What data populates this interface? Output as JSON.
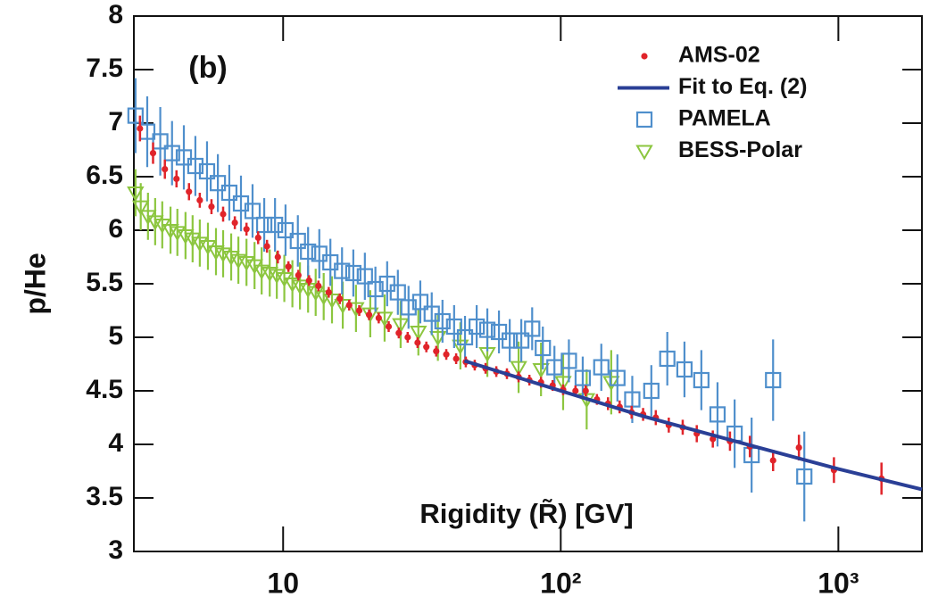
{
  "chart_data": {
    "type": "scatter",
    "annotation": "(b)",
    "xlabel": "Rigidity (R̃) [GV]",
    "ylabel": "p/He",
    "xscale": "log",
    "xlim": [
      2.9,
      2000
    ],
    "ylim": [
      3,
      8
    ],
    "xticks": [
      10,
      {
        "value": 100,
        "label": "10²"
      },
      {
        "value": 1000,
        "label": "10³"
      }
    ],
    "yticks": [
      3,
      3.5,
      4,
      4.5,
      5,
      5.5,
      6,
      6.5,
      7,
      7.5,
      8
    ],
    "legend": "top-right",
    "series": [
      {
        "name": "AMS-02",
        "color": "#e0242a",
        "marker": "circle",
        "x": [
          3.05,
          3.4,
          3.75,
          4.13,
          4.58,
          5.01,
          5.52,
          6.08,
          6.7,
          7.38,
          8.13,
          8.75,
          9.57,
          10.45,
          11.35,
          12.4,
          13.4,
          14.6,
          16,
          17.3,
          18.8,
          20.4,
          22.1,
          24,
          26.1,
          28.1,
          30.5,
          32.8,
          35.6,
          38.7,
          42,
          45.5,
          49,
          53.6,
          58.6,
          64,
          70.5,
          77.1,
          84.9,
          93.5,
          102,
          113,
          123,
          135,
          148,
          163,
          180,
          198,
          220,
          245,
          275,
          309,
          353,
          407,
          480,
          582,
          721,
          964,
          1430
        ],
        "values": [
          6.95,
          6.72,
          6.57,
          6.48,
          6.36,
          6.28,
          6.22,
          6.15,
          6.07,
          6.01,
          5.93,
          5.85,
          5.75,
          5.66,
          5.58,
          5.53,
          5.48,
          5.42,
          5.36,
          5.3,
          5.25,
          5.21,
          5.18,
          5.1,
          5.04,
          5,
          4.95,
          4.91,
          4.87,
          4.84,
          4.8,
          4.77,
          4.74,
          4.71,
          4.68,
          4.66,
          4.63,
          4.6,
          4.58,
          4.55,
          4.51,
          4.5,
          4.5,
          4.42,
          4.38,
          4.35,
          4.3,
          4.28,
          4.25,
          4.18,
          4.16,
          4.1,
          4.05,
          4.03,
          3.98,
          3.85,
          3.97,
          3.76,
          3.68
        ],
        "errors": [
          0.12,
          0.1,
          0.09,
          0.08,
          0.08,
          0.07,
          0.07,
          0.07,
          0.06,
          0.06,
          0.06,
          0.06,
          0.06,
          0.05,
          0.05,
          0.05,
          0.05,
          0.05,
          0.05,
          0.05,
          0.05,
          0.05,
          0.05,
          0.05,
          0.05,
          0.05,
          0.05,
          0.05,
          0.05,
          0.05,
          0.05,
          0.05,
          0.05,
          0.05,
          0.05,
          0.05,
          0.05,
          0.05,
          0.05,
          0.05,
          0.05,
          0.05,
          0.05,
          0.05,
          0.06,
          0.06,
          0.06,
          0.06,
          0.07,
          0.07,
          0.07,
          0.08,
          0.08,
          0.09,
          0.1,
          0.1,
          0.12,
          0.12,
          0.15
        ]
      },
      {
        "name": "Fit to Eq. (2)",
        "color": "#2a3f96",
        "marker": "line",
        "x": [
          45,
          100,
          200,
          500,
          1000,
          2000
        ],
        "values": [
          4.78,
          4.5,
          4.26,
          3.98,
          3.77,
          3.58
        ]
      },
      {
        "name": "PAMELA",
        "color": "#4f8fcc",
        "marker": "square",
        "x": [
          2.94,
          3.24,
          3.61,
          3.98,
          4.39,
          4.83,
          5.32,
          5.82,
          6.4,
          7.05,
          7.76,
          8.55,
          9.35,
          10.2,
          11.3,
          12.3,
          13.5,
          14.8,
          16.3,
          17.9,
          19.7,
          21.5,
          23.7,
          25.9,
          28.3,
          31.2,
          34.3,
          37.5,
          41.3,
          45.2,
          49.8,
          54.4,
          59.9,
          65.5,
          72.1,
          78.9,
          86.2,
          94.9,
          107,
          120,
          140,
          160,
          181,
          212,
          242,
          279,
          321,
          367,
          423,
          487,
          582,
          754
        ],
        "values": [
          7.07,
          6.92,
          6.83,
          6.72,
          6.68,
          6.6,
          6.55,
          6.44,
          6.35,
          6.25,
          6.18,
          6.05,
          6.05,
          6,
          5.9,
          5.8,
          5.78,
          5.7,
          5.62,
          5.6,
          5.57,
          5.45,
          5.5,
          5.42,
          5.28,
          5.33,
          5.22,
          5.15,
          5.1,
          5,
          5.1,
          5.07,
          5.05,
          4.97,
          4.97,
          5.08,
          4.9,
          4.72,
          4.78,
          4.62,
          4.72,
          4.62,
          4.42,
          4.5,
          4.8,
          4.7,
          4.6,
          4.28,
          4.1,
          3.9,
          4.6,
          3.7
        ],
        "errors": [
          0.35,
          0.33,
          0.32,
          0.3,
          0.3,
          0.28,
          0.28,
          0.27,
          0.26,
          0.26,
          0.25,
          0.25,
          0.25,
          0.24,
          0.24,
          0.23,
          0.23,
          0.22,
          0.22,
          0.22,
          0.22,
          0.21,
          0.21,
          0.21,
          0.2,
          0.2,
          0.2,
          0.2,
          0.2,
          0.2,
          0.2,
          0.2,
          0.2,
          0.2,
          0.2,
          0.2,
          0.2,
          0.2,
          0.2,
          0.2,
          0.22,
          0.22,
          0.22,
          0.24,
          0.25,
          0.26,
          0.28,
          0.3,
          0.32,
          0.35,
          0.38,
          0.42
        ]
      },
      {
        "name": "BESS-Polar",
        "color": "#8cc63f",
        "marker": "triangle",
        "x": [
          2.94,
          3.07,
          3.26,
          3.46,
          3.67,
          3.93,
          4.16,
          4.45,
          4.72,
          5.01,
          5.36,
          5.73,
          6.08,
          6.5,
          6.9,
          7.38,
          7.89,
          8.37,
          8.95,
          9.49,
          10.1,
          10.8,
          11.5,
          12.3,
          13.1,
          14,
          15,
          16.4,
          18.3,
          20.6,
          23.2,
          26.5,
          30.7,
          36.1,
          43.5,
          54.4,
          70.5,
          84.9,
          102,
          124,
          152
        ],
        "values": [
          6.35,
          6.22,
          6.13,
          6.08,
          6.05,
          6,
          5.98,
          5.95,
          5.92,
          5.88,
          5.85,
          5.8,
          5.78,
          5.75,
          5.72,
          5.7,
          5.67,
          5.62,
          5.6,
          5.58,
          5.55,
          5.5,
          5.48,
          5.45,
          5.42,
          5.38,
          5.35,
          5.3,
          5.27,
          5.22,
          5.18,
          5.12,
          5.05,
          5,
          4.92,
          4.85,
          4.72,
          4.7,
          4.58,
          4.42,
          4.58
        ],
        "errors": [
          0.22,
          0.22,
          0.22,
          0.22,
          0.22,
          0.22,
          0.22,
          0.22,
          0.22,
          0.22,
          0.22,
          0.22,
          0.22,
          0.22,
          0.22,
          0.22,
          0.22,
          0.22,
          0.22,
          0.22,
          0.22,
          0.22,
          0.22,
          0.22,
          0.22,
          0.22,
          0.22,
          0.22,
          0.22,
          0.22,
          0.22,
          0.22,
          0.22,
          0.22,
          0.22,
          0.22,
          0.24,
          0.25,
          0.26,
          0.28,
          0.3
        ]
      }
    ]
  }
}
